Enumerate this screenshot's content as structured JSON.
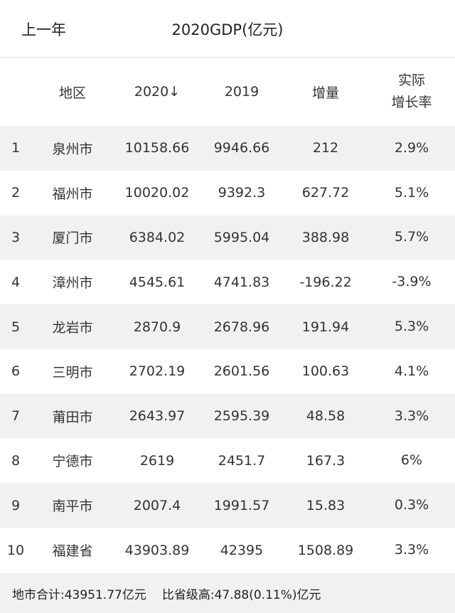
{
  "header": {
    "prev_label": "上一年",
    "title": "2020GDP(亿元)"
  },
  "columns": {
    "region": "地区",
    "y2020": "2020",
    "sort_icon": "↓",
    "y2019": "2019",
    "increment": "增量",
    "rate_line1": "实际",
    "rate_line2": "增长率"
  },
  "rows": [
    {
      "rank": "1",
      "region": "泉州市",
      "y2020": "10158.66",
      "y2019": "9946.66",
      "inc": "212",
      "rate": "2.9%"
    },
    {
      "rank": "2",
      "region": "福州市",
      "y2020": "10020.02",
      "y2019": "9392.3",
      "inc": "627.72",
      "rate": "5.1%"
    },
    {
      "rank": "3",
      "region": "厦门市",
      "y2020": "6384.02",
      "y2019": "5995.04",
      "inc": "388.98",
      "rate": "5.7%"
    },
    {
      "rank": "4",
      "region": "漳州市",
      "y2020": "4545.61",
      "y2019": "4741.83",
      "inc": "-196.22",
      "rate": "-3.9%"
    },
    {
      "rank": "5",
      "region": "龙岩市",
      "y2020": "2870.9",
      "y2019": "2678.96",
      "inc": "191.94",
      "rate": "5.3%"
    },
    {
      "rank": "6",
      "region": "三明市",
      "y2020": "2702.19",
      "y2019": "2601.56",
      "inc": "100.63",
      "rate": "4.1%"
    },
    {
      "rank": "7",
      "region": "莆田市",
      "y2020": "2643.97",
      "y2019": "2595.39",
      "inc": "48.58",
      "rate": "3.3%"
    },
    {
      "rank": "8",
      "region": "宁德市",
      "y2020": "2619",
      "y2019": "2451.7",
      "inc": "167.3",
      "rate": "6%"
    },
    {
      "rank": "9",
      "region": "南平市",
      "y2020": "2007.4",
      "y2019": "1991.57",
      "inc": "15.83",
      "rate": "0.3%"
    },
    {
      "rank": "10",
      "region": "福建省",
      "y2020": "43903.89",
      "y2019": "42395",
      "inc": "1508.89",
      "rate": "3.3%"
    }
  ],
  "footer": {
    "city_total": "地市合计:43951.77亿元",
    "diff": "比省级高:47.88(0.11%)亿元"
  },
  "colors": {
    "stripe": "#f1f1f1",
    "text": "#333333"
  }
}
